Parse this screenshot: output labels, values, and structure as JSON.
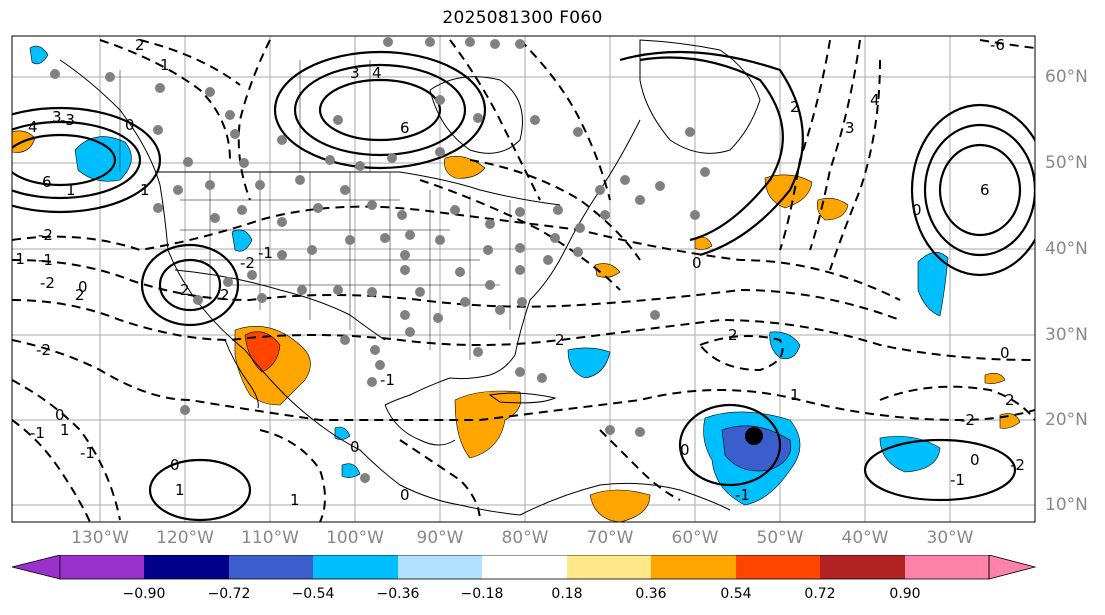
{
  "title": "2025081300 F060",
  "colors": {
    "dot": "#808080",
    "axis_label": "#888888",
    "grid": "#aaaaaa"
  },
  "lat_labels": [
    "60°N",
    "50°N",
    "40°N",
    "30°N",
    "20°N",
    "10°N"
  ],
  "lon_labels": [
    "130°W",
    "120°W",
    "110°W",
    "100°W",
    "90°W",
    "80°W",
    "70°W",
    "60°W",
    "50°W",
    "40°W",
    "30°W"
  ],
  "colorbar": {
    "ticks": [
      "−0.90",
      "−0.72",
      "−0.54",
      "−0.36",
      "−0.18",
      "0.18",
      "0.36",
      "0.54",
      "0.72",
      "0.90"
    ],
    "colors": [
      "#9932cc",
      "#00008b",
      "#3a5fcd",
      "#00bfff",
      "#b0e2ff",
      "#ffffff",
      "#ffe78a",
      "#ffa500",
      "#ff4500",
      "#b22222",
      "#ff82ab"
    ]
  },
  "contour_labels": [
    "1",
    "2",
    "3",
    "4",
    "6",
    "-1",
    "-2",
    "-3",
    "-6",
    "0",
    "1",
    "2",
    "2",
    "1",
    "6",
    "4",
    "3",
    "2",
    "-1",
    "-2",
    "0",
    "2",
    "3",
    "4",
    "6",
    "0",
    "-1",
    "-2",
    "-1",
    "0",
    "0",
    "1",
    "1",
    "0",
    "-1",
    "1",
    "0",
    "-1",
    "2",
    "0",
    "2",
    "1",
    "0",
    "-1",
    "0",
    "-2",
    "-1",
    "-2",
    "0",
    "2",
    "-2"
  ],
  "storm_marker": "storm-center"
}
